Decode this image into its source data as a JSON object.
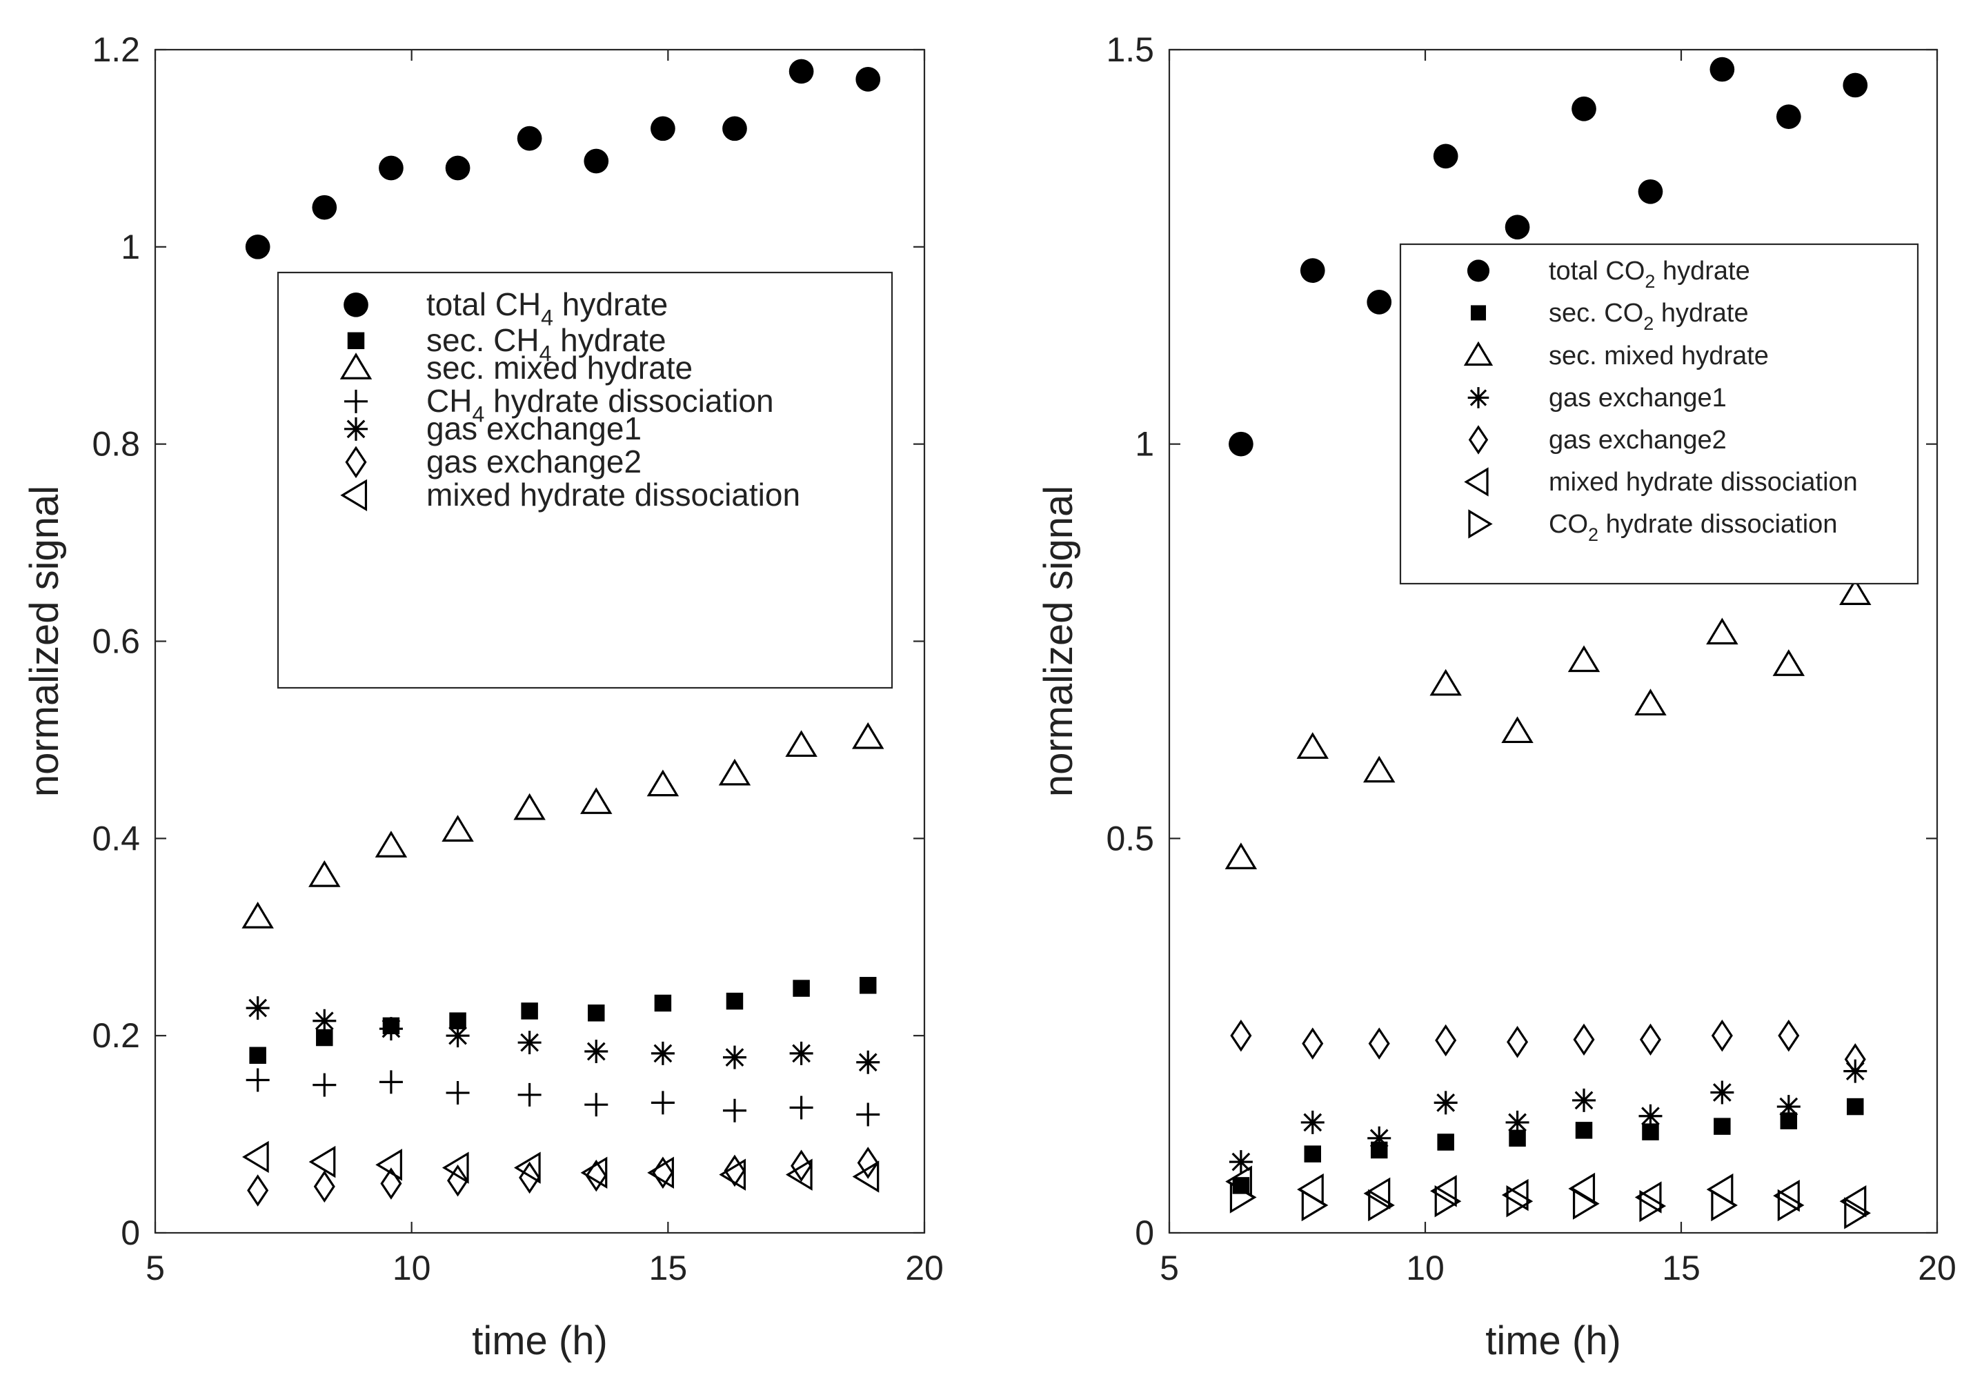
{
  "chart_data": [
    {
      "type": "scatter",
      "title": "",
      "xlabel": "time (h)",
      "ylabel": "normalized signal",
      "xlim": [
        5,
        20
      ],
      "ylim": [
        0,
        1.2
      ],
      "xticks": [
        "5",
        "10",
        "15",
        "20"
      ],
      "yticks": [
        "0",
        "0.2",
        "0.4",
        "0.6",
        "0.8",
        "1",
        "1.2"
      ],
      "grid": false,
      "legend_position": "upper-right",
      "x": [
        7.0,
        8.3,
        9.6,
        10.9,
        12.3,
        13.6,
        14.9,
        16.3,
        17.6,
        18.9
      ],
      "series": [
        {
          "name": "total CH4 hydrate",
          "label_main": "total CH",
          "label_sub": "4",
          "label_tail": " hydrate",
          "marker": "circle-filled",
          "values": [
            1.0,
            1.04,
            1.08,
            1.08,
            1.11,
            1.087,
            1.12,
            1.12,
            1.178,
            1.17
          ]
        },
        {
          "name": "sec. CH4 hydrate",
          "label_main": "sec. CH",
          "label_sub": "4",
          "label_tail": " hydrate",
          "marker": "square-filled",
          "values": [
            0.18,
            0.198,
            0.21,
            0.215,
            0.225,
            0.223,
            0.233,
            0.235,
            0.248,
            0.251
          ]
        },
        {
          "name": "sec. mixed hydrate",
          "label_main": "sec. mixed hydrate",
          "label_sub": "",
          "label_tail": "",
          "marker": "triangle-up",
          "values": [
            0.32,
            0.362,
            0.392,
            0.408,
            0.43,
            0.436,
            0.454,
            0.465,
            0.494,
            0.502
          ]
        },
        {
          "name": "CH4 hydrate dissociation",
          "label_main": "CH",
          "label_sub": "4",
          "label_tail": " hydrate dissociation",
          "marker": "plus",
          "values": [
            0.155,
            0.15,
            0.153,
            0.142,
            0.14,
            0.13,
            0.132,
            0.124,
            0.127,
            0.12
          ]
        },
        {
          "name": "gas exchange1",
          "label_main": "gas exchange1",
          "label_sub": "",
          "label_tail": "",
          "marker": "asterisk",
          "values": [
            0.228,
            0.215,
            0.207,
            0.2,
            0.193,
            0.184,
            0.182,
            0.178,
            0.182,
            0.173
          ]
        },
        {
          "name": "gas exchange2",
          "label_main": "gas exchange2",
          "label_sub": "",
          "label_tail": "",
          "marker": "diamond",
          "values": [
            0.043,
            0.047,
            0.05,
            0.053,
            0.056,
            0.058,
            0.061,
            0.063,
            0.068,
            0.071
          ]
        },
        {
          "name": "mixed hydrate dissociation",
          "label_main": "mixed hydrate dissociation",
          "label_sub": "",
          "label_tail": "",
          "marker": "triangle-left",
          "values": [
            0.077,
            0.072,
            0.069,
            0.066,
            0.066,
            0.061,
            0.061,
            0.059,
            0.059,
            0.057
          ]
        }
      ]
    },
    {
      "type": "scatter",
      "title": "",
      "xlabel": "time (h)",
      "ylabel": "normalized signal",
      "xlim": [
        5,
        20
      ],
      "ylim": [
        0,
        1.5
      ],
      "xticks": [
        "5",
        "10",
        "15",
        "20"
      ],
      "yticks": [
        "0",
        "0.5",
        "1",
        "1.5"
      ],
      "grid": false,
      "legend_position": "upper-right",
      "x": [
        6.4,
        7.8,
        9.1,
        10.4,
        11.8,
        13.1,
        14.4,
        15.8,
        17.1,
        18.4
      ],
      "series": [
        {
          "name": "total CO2 hydrate",
          "label_main": "total CO",
          "label_sub": "2",
          "label_tail": " hydrate",
          "marker": "circle-filled",
          "values": [
            1.0,
            1.22,
            1.18,
            1.365,
            1.275,
            1.425,
            1.32,
            1.475,
            1.415,
            1.455
          ]
        },
        {
          "name": "sec. CO2 hydrate",
          "label_main": "sec. CO",
          "label_sub": "2",
          "label_tail": " hydrate",
          "marker": "square-filled",
          "values": [
            0.06,
            0.1,
            0.105,
            0.115,
            0.12,
            0.13,
            0.128,
            0.135,
            0.142,
            0.16
          ]
        },
        {
          "name": "sec. mixed hydrate",
          "label_main": "sec. mixed hydrate",
          "label_sub": "",
          "label_tail": "",
          "marker": "triangle-up",
          "values": [
            0.475,
            0.615,
            0.585,
            0.695,
            0.635,
            0.725,
            0.67,
            0.76,
            0.72,
            0.81
          ]
        },
        {
          "name": "gas exchange1",
          "label_main": "gas exchange1",
          "label_sub": "",
          "label_tail": "",
          "marker": "asterisk",
          "values": [
            0.09,
            0.14,
            0.12,
            0.165,
            0.14,
            0.168,
            0.148,
            0.178,
            0.16,
            0.205
          ]
        },
        {
          "name": "gas exchange2",
          "label_main": "gas exchange2",
          "label_sub": "",
          "label_tail": "",
          "marker": "diamond",
          "values": [
            0.25,
            0.24,
            0.24,
            0.244,
            0.242,
            0.245,
            0.245,
            0.25,
            0.25,
            0.22
          ]
        },
        {
          "name": "mixed hydrate dissociation",
          "label_main": "mixed hydrate dissociation",
          "label_sub": "",
          "label_tail": "",
          "marker": "triangle-left",
          "values": [
            0.065,
            0.055,
            0.05,
            0.053,
            0.048,
            0.056,
            0.045,
            0.055,
            0.047,
            0.04
          ]
        },
        {
          "name": "CO2 hydrate dissociation",
          "label_main": "CO",
          "label_sub": "2",
          "label_tail": " hydrate dissociation",
          "marker": "triangle-right",
          "values": [
            0.045,
            0.035,
            0.035,
            0.04,
            0.04,
            0.037,
            0.034,
            0.035,
            0.035,
            0.025
          ]
        }
      ]
    }
  ]
}
